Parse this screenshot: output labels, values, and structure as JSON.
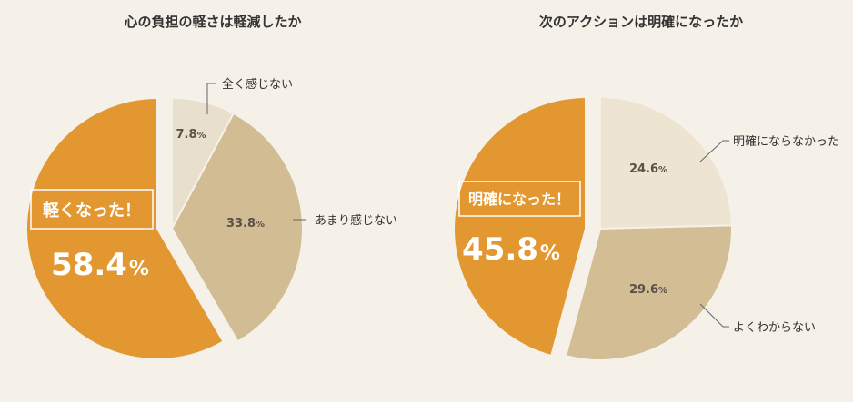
{
  "background": "#f5f0e8",
  "chart_data": [
    {
      "type": "pie",
      "title": "心の負担の軽さは軽減したか",
      "slices": [
        {
          "label": "全く感じない",
          "value": 7.8,
          "value_text": "7.8",
          "unit": "%",
          "color": "#e9dfcd"
        },
        {
          "label": "あまり感じない",
          "value": 33.8,
          "value_text": "33.8",
          "unit": "%",
          "color": "#d1bc94"
        },
        {
          "label": "軽くなった！",
          "value": 58.4,
          "value_text": "58.4",
          "unit": "%",
          "color": "#e39731",
          "highlight": true
        }
      ]
    },
    {
      "type": "pie",
      "title": "次のアクションは明確になったか",
      "slices": [
        {
          "label": "明確にならなかった",
          "value": 24.6,
          "value_text": "24.6",
          "unit": "%",
          "color": "#ede4d2"
        },
        {
          "label": "よくわからない",
          "value": 29.6,
          "value_text": "29.6",
          "unit": "%",
          "color": "#d2bd95"
        },
        {
          "label": "明確になった！",
          "value": 45.8,
          "value_text": "45.8",
          "unit": "%",
          "color": "#e39731",
          "highlight": true
        }
      ]
    }
  ]
}
